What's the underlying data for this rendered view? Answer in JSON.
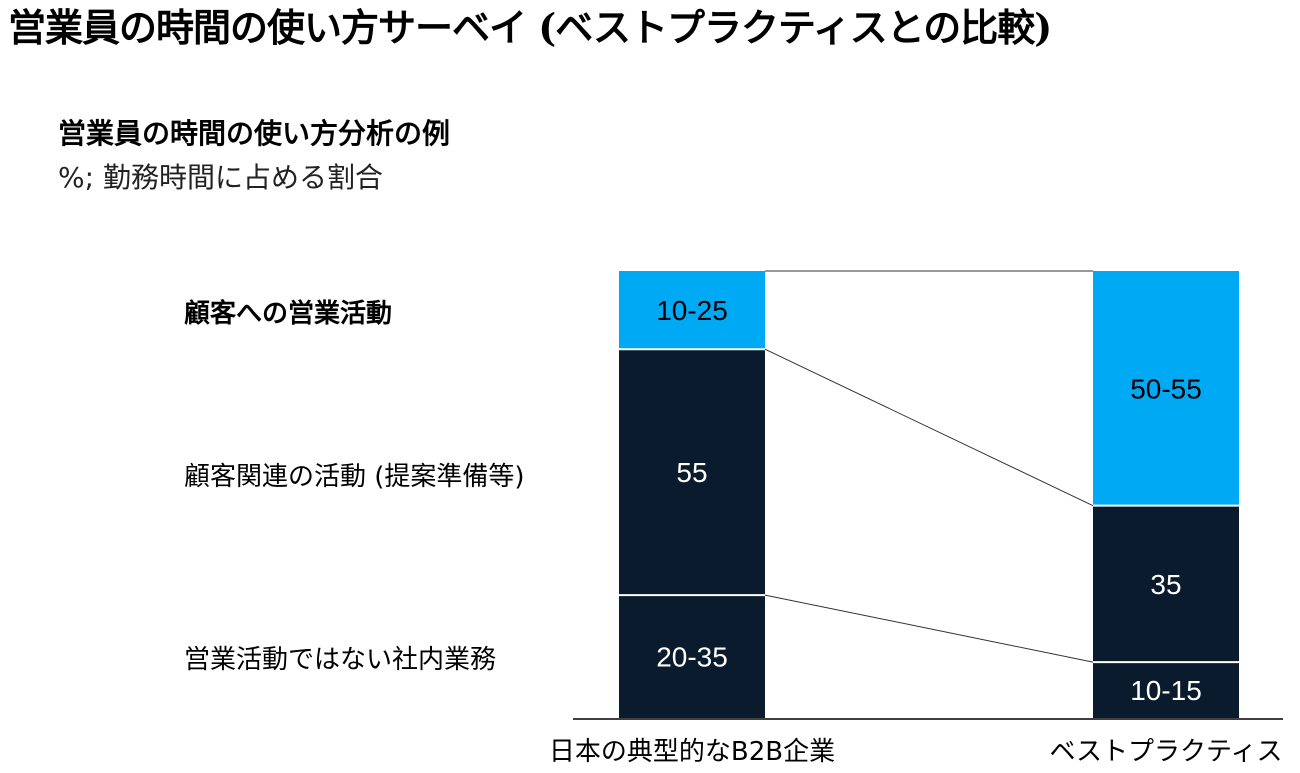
{
  "page_title": "営業員の時間の使い方サーベイ (ベストプラクティスとの比較)",
  "chart_data": {
    "type": "bar",
    "stacked": true,
    "title": "営業員の時間の使い方分析の例",
    "subtitle": "%; 勤務時間に占める割合",
    "categories": [
      "日本の典型的なB2B企業",
      "ベストプラクティス"
    ],
    "series": [
      {
        "name": "営業活動ではない社内業務",
        "values": [
          27.5,
          12.5
        ],
        "labels": [
          "20-35",
          "10-15"
        ],
        "color": "#0b1b2e",
        "text_color": "#ffffff"
      },
      {
        "name": "顧客関連の活動 (提案準備等)",
        "values": [
          55,
          35
        ],
        "labels": [
          "55",
          "35"
        ],
        "color": "#0b1b2e",
        "text_color": "#ffffff"
      },
      {
        "name": "顧客への営業活動",
        "values": [
          17.5,
          52.5
        ],
        "labels": [
          "10-25",
          "50-55"
        ],
        "color": "#00a9f4",
        "text_color": "#000000"
      }
    ],
    "ylim": [
      0,
      100
    ],
    "grid": false,
    "legend": "left",
    "bold_series": "顧客への営業活動"
  }
}
